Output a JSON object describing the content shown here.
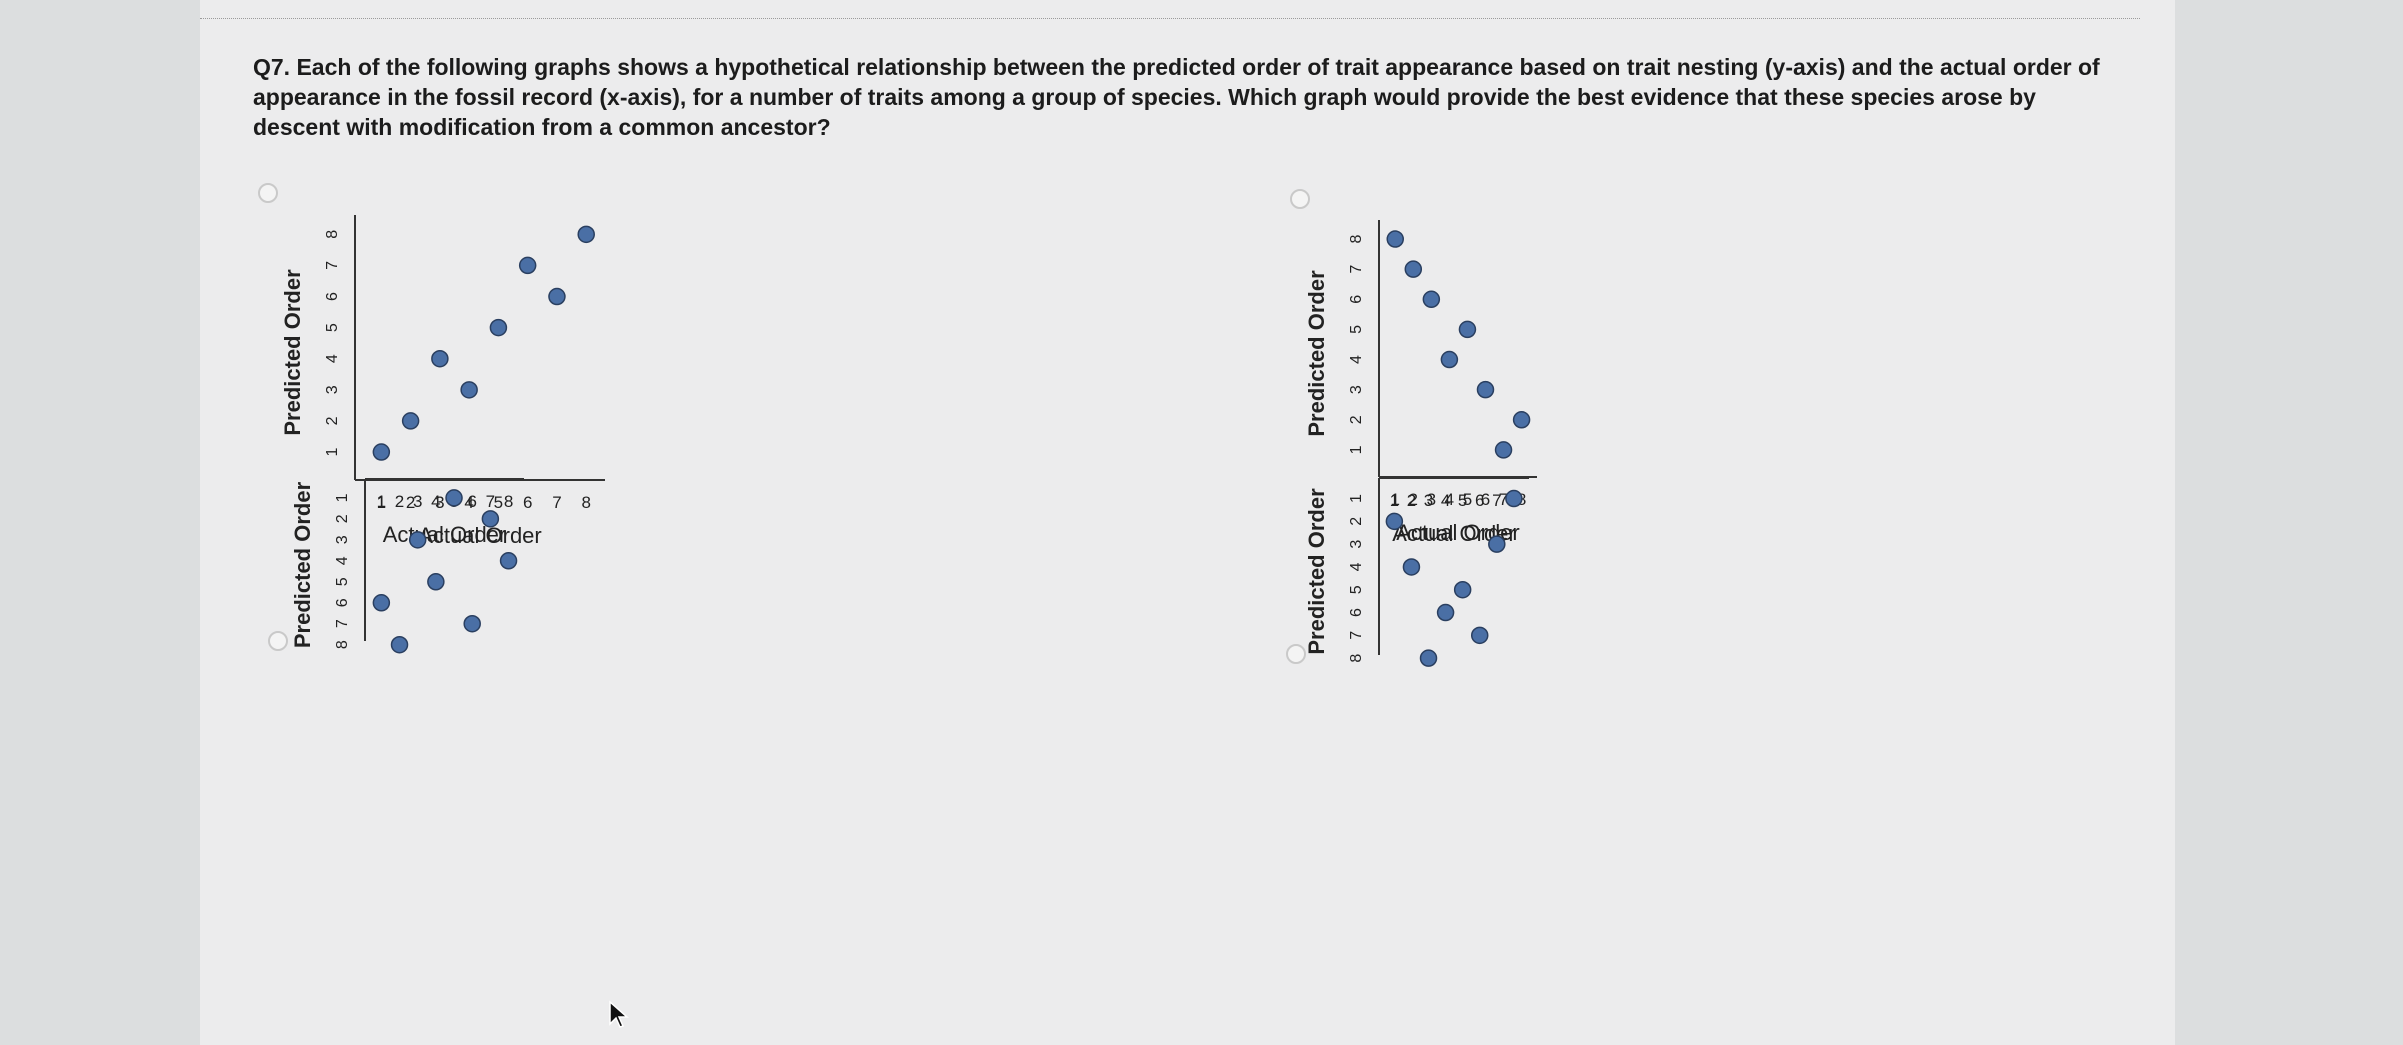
{
  "question": {
    "text": "Q7. Each of the following graphs shows a hypothetical relationship between the predicted order of trait appearance based on trait nesting (y-axis) and the actual order of appearance in the fossil record (x-axis), for a number of traits among a group of species. Which graph would provide the best evidence that these species arose by descent with modification from a common ancestor?"
  },
  "chart_data": [
    {
      "type": "scatter",
      "xlabel": "Actual Order",
      "ylabel": "Predicted Order",
      "xticks": [
        "1",
        "2",
        "3",
        "4",
        "5",
        "6",
        "7",
        "8"
      ],
      "yticks": [
        "1",
        "2",
        "3",
        "4",
        "5",
        "6",
        "7",
        "8"
      ],
      "xlim": [
        0.1,
        8.3
      ],
      "ylim": [
        0.1,
        8.3
      ],
      "point_color": "#4a6fa5",
      "points": [
        [
          1,
          1
        ],
        [
          2,
          2
        ],
        [
          3,
          4
        ],
        [
          4,
          3
        ],
        [
          5,
          5
        ],
        [
          6,
          7
        ],
        [
          7,
          6
        ],
        [
          8,
          8
        ]
      ]
    },
    {
      "type": "scatter",
      "xlabel": "Actual Order",
      "ylabel": "Predicted Order",
      "xticks": [
        "1",
        "2",
        "3",
        "4",
        "5",
        "6",
        "7",
        "8"
      ],
      "yticks": [
        "1",
        "2",
        "3",
        "4",
        "5",
        "6",
        "7",
        "8"
      ],
      "xlim": [
        0.1,
        8.3
      ],
      "ylim": [
        0.1,
        8.3
      ],
      "point_color": "#4a6fa5",
      "points": [
        [
          1,
          8
        ],
        [
          2,
          7
        ],
        [
          3,
          6
        ],
        [
          4,
          4
        ],
        [
          5,
          5
        ],
        [
          6,
          3
        ],
        [
          7,
          1
        ],
        [
          8,
          2
        ]
      ]
    },
    {
      "type": "scatter",
      "xlabel": "Actual Order",
      "ylabel": "Predicted Order",
      "xticks": [
        "1",
        "2",
        "3",
        "4",
        "5",
        "6",
        "7",
        "8"
      ],
      "yticks": [
        "1",
        "2",
        "3",
        "4",
        "5",
        "6",
        "7",
        "8"
      ],
      "xlim": [
        0.1,
        8.3
      ],
      "ylim": [
        0.1,
        8.3
      ],
      "point_color": "#4a6fa5",
      "points": [
        [
          1,
          6
        ],
        [
          2,
          8
        ],
        [
          3,
          3
        ],
        [
          4,
          5
        ],
        [
          5,
          1
        ],
        [
          6,
          7
        ],
        [
          7,
          2
        ],
        [
          8,
          4
        ]
      ]
    },
    {
      "type": "scatter",
      "xlabel": "Actual Order",
      "ylabel": "Predicted Order",
      "xticks": [
        "1",
        "2",
        "3",
        "4",
        "5",
        "6",
        "7",
        "8"
      ],
      "yticks": [
        "1",
        "2",
        "3",
        "4",
        "5",
        "6",
        "7",
        "8"
      ],
      "xlim": [
        0.1,
        8.3
      ],
      "ylim": [
        0.1,
        8.3
      ],
      "point_color": "#4a6fa5",
      "points": [
        [
          1,
          2
        ],
        [
          2,
          4
        ],
        [
          3,
          8
        ],
        [
          4,
          6
        ],
        [
          5,
          5
        ],
        [
          6,
          7
        ],
        [
          7,
          3
        ],
        [
          8,
          1
        ]
      ]
    }
  ]
}
